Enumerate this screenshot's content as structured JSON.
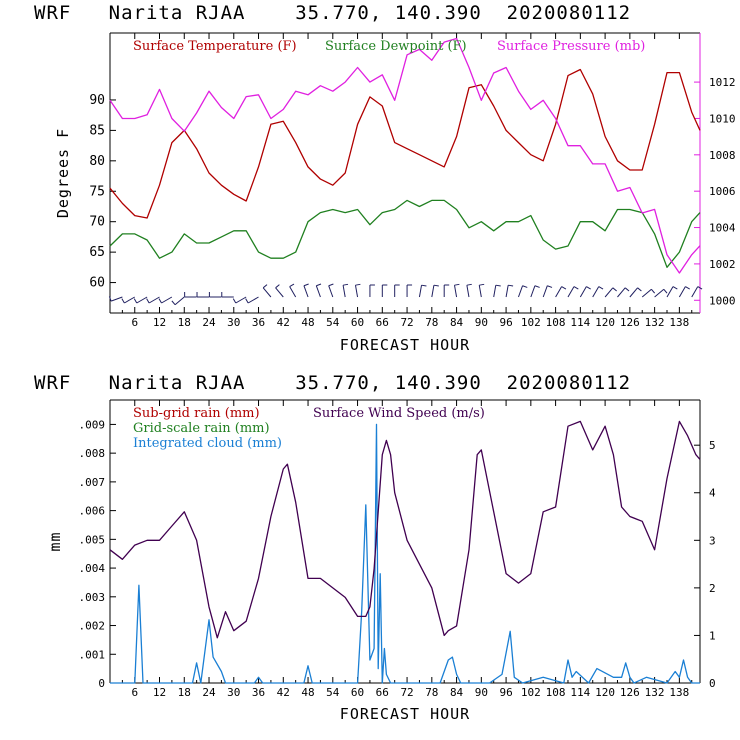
{
  "titles": {
    "top": "WRF   Narita RJAA    35.770, 140.390  2020080112",
    "bottom": "WRF   Narita RJAA    35.770, 140.390  2020080112"
  },
  "chart_data": [
    {
      "type": "line",
      "title": "WRF   Narita RJAA    35.770, 140.390  2020080112",
      "xlabel": "FORECAST HOUR",
      "ylabel": "Degrees F",
      "y2label": "",
      "xlim": [
        0,
        143
      ],
      "xticks": [
        6,
        12,
        18,
        24,
        30,
        36,
        42,
        48,
        54,
        60,
        66,
        72,
        78,
        84,
        90,
        96,
        102,
        108,
        114,
        120,
        126,
        132,
        138
      ],
      "ylim": [
        55,
        101
      ],
      "yticks": [
        60,
        65,
        70,
        75,
        80,
        85,
        90
      ],
      "y2lim": [
        999.3,
        1014.7
      ],
      "y2ticks": [
        1000,
        1002,
        1004,
        1006,
        1008,
        1010,
        1012
      ],
      "series": [
        {
          "name": "Surface Temperature (F)",
          "color": "#b00000",
          "axis": "left",
          "x": [
            0,
            3,
            6,
            9,
            12,
            15,
            18,
            21,
            24,
            27,
            30,
            33,
            36,
            39,
            42,
            45,
            48,
            51,
            54,
            57,
            60,
            63,
            66,
            69,
            72,
            75,
            78,
            81,
            84,
            87,
            90,
            93,
            96,
            99,
            102,
            105,
            108,
            111,
            114,
            117,
            120,
            123,
            126,
            129,
            132,
            135,
            138,
            141,
            143
          ],
          "values": [
            75.5,
            73,
            71,
            70.6,
            76,
            83,
            85,
            82,
            78,
            76,
            74.5,
            73.4,
            79,
            86,
            86.5,
            83,
            79,
            77,
            76,
            78,
            86,
            90.5,
            89,
            83,
            82,
            81,
            80,
            79,
            84,
            92,
            92.5,
            89,
            85,
            83,
            81,
            80,
            86,
            94,
            95,
            91,
            84,
            80,
            78.5,
            78.5,
            86,
            94.5,
            94.5,
            88,
            85
          ]
        },
        {
          "name": "Surface Dewpoint (F)",
          "color": "#208020",
          "axis": "left",
          "x": [
            0,
            3,
            6,
            9,
            12,
            15,
            18,
            21,
            24,
            27,
            30,
            33,
            36,
            39,
            42,
            45,
            48,
            51,
            54,
            57,
            60,
            63,
            66,
            69,
            72,
            75,
            78,
            81,
            84,
            87,
            90,
            93,
            96,
            99,
            102,
            105,
            108,
            111,
            114,
            117,
            120,
            123,
            126,
            129,
            132,
            135,
            138,
            141,
            143
          ],
          "values": [
            66,
            68,
            68,
            67,
            64,
            65,
            68,
            66.5,
            66.5,
            67.5,
            68.5,
            68.5,
            65,
            64,
            64,
            65,
            70,
            71.5,
            72,
            71.5,
            72,
            69.5,
            71.5,
            72,
            73.5,
            72.5,
            73.5,
            73.5,
            72,
            69,
            70,
            68.5,
            70,
            70,
            71,
            67,
            65.5,
            66,
            70,
            70,
            68.5,
            72,
            72,
            71.5,
            68,
            62.5,
            65,
            70,
            71.5
          ]
        },
        {
          "name": "Surface Pressure (mb)",
          "color": "#e020e0",
          "axis": "right",
          "x": [
            0,
            3,
            6,
            9,
            12,
            15,
            18,
            21,
            24,
            27,
            30,
            33,
            36,
            39,
            42,
            45,
            48,
            51,
            54,
            57,
            60,
            63,
            66,
            69,
            72,
            75,
            78,
            81,
            84,
            87,
            90,
            93,
            96,
            99,
            102,
            105,
            108,
            111,
            114,
            117,
            120,
            123,
            126,
            129,
            132,
            135,
            138,
            141,
            143
          ],
          "values": [
            1011,
            1010,
            1010,
            1010.2,
            1011.6,
            1010,
            1009.3,
            1010.3,
            1011.5,
            1010.6,
            1010,
            1011.2,
            1011.3,
            1010,
            1010.5,
            1011.5,
            1011.3,
            1011.8,
            1011.5,
            1012,
            1012.8,
            1012,
            1012.4,
            1011,
            1013.5,
            1013.8,
            1013.2,
            1014.2,
            1014.4,
            1012.8,
            1011,
            1012.5,
            1012.8,
            1011.5,
            1010.5,
            1011,
            1010,
            1008.5,
            1008.5,
            1007.5,
            1007.5,
            1006,
            1006.2,
            1004.8,
            1005,
            1002.5,
            1001.5,
            1002.5,
            1003
          ]
        }
      ],
      "wind_barbs": {
        "color": "#202060",
        "x": [
          3,
          6,
          9,
          12,
          15,
          18,
          21,
          24,
          27,
          30,
          33,
          36,
          39,
          42,
          45,
          48,
          51,
          54,
          57,
          60,
          63,
          66,
          69,
          72,
          75,
          78,
          81,
          84,
          87,
          90,
          93,
          96,
          99,
          102,
          105,
          108,
          111,
          114,
          117,
          120,
          123,
          126,
          129,
          132,
          135,
          138,
          141
        ],
        "direction_deg": [
          250,
          240,
          240,
          240,
          240,
          230,
          270,
          270,
          270,
          270,
          240,
          240,
          320,
          320,
          330,
          340,
          340,
          340,
          350,
          350,
          0,
          0,
          0,
          0,
          10,
          10,
          0,
          350,
          350,
          350,
          10,
          10,
          20,
          20,
          20,
          30,
          30,
          30,
          30,
          40,
          40,
          40,
          50,
          50,
          30,
          30,
          30
        ]
      }
    },
    {
      "type": "line",
      "title": "WRF   Narita RJAA    35.770, 140.390  2020080112",
      "xlabel": "FORECAST HOUR",
      "ylabel": "mm",
      "xlim": [
        0,
        143
      ],
      "xticks": [
        6,
        12,
        18,
        24,
        30,
        36,
        42,
        48,
        54,
        60,
        66,
        72,
        78,
        84,
        90,
        96,
        102,
        108,
        114,
        120,
        126,
        132,
        138
      ],
      "ylim": [
        0,
        0.00985
      ],
      "yticks": [
        0,
        0.001,
        0.002,
        0.003,
        0.004,
        0.005,
        0.006,
        0.007,
        0.008,
        0.009
      ],
      "yticklabels": [
        "0",
        ".001",
        ".002",
        ".003",
        ".004",
        ".005",
        ".006",
        ".007",
        ".008",
        ".009"
      ],
      "y2lim": [
        0,
        5.95
      ],
      "y2ticks": [
        0,
        1,
        2,
        3,
        4,
        5
      ],
      "series": [
        {
          "name": "Sub-grid rain (mm)",
          "color": "#b00000",
          "axis": "left",
          "x": [],
          "values": []
        },
        {
          "name": "Grid-scale rain (mm)",
          "color": "#208020",
          "axis": "left",
          "x": [],
          "values": []
        },
        {
          "name": "Integrated cloud (mm)",
          "color": "#1a7fd4",
          "axis": "left",
          "x": [
            0,
            6,
            7,
            8,
            9,
            20,
            21,
            22,
            24,
            25,
            27,
            28,
            30,
            35,
            36,
            37,
            47,
            48,
            49,
            60,
            61,
            62,
            63,
            64,
            64.6,
            65,
            65.5,
            66,
            66.5,
            67,
            68,
            70,
            80,
            82,
            83,
            84,
            85,
            92,
            95,
            97,
            98,
            100,
            105,
            110,
            111,
            112,
            113,
            116,
            118,
            122,
            124,
            125,
            126,
            127,
            130,
            135,
            137,
            138,
            139,
            140,
            141,
            143
          ],
          "values": [
            0,
            0,
            0.0034,
            0,
            0,
            0,
            0.0007,
            0,
            0.0022,
            0.0009,
            0.0004,
            0,
            0,
            0,
            0.0002,
            0,
            0,
            0.0006,
            0,
            0,
            0.0025,
            0.0062,
            0.0008,
            0.0012,
            0.009,
            0.0005,
            0.0038,
            0,
            0.0012,
            0.0003,
            0,
            0,
            0,
            0.0008,
            0.0009,
            0.0003,
            0,
            0,
            0.0003,
            0.0018,
            0.0002,
            0,
            0.0002,
            0,
            0.0008,
            0.0002,
            0.0004,
            0,
            0.0005,
            0.0002,
            0.0002,
            0.0007,
            0.0002,
            0,
            0.0002,
            0,
            0.0004,
            0.0002,
            0.0008,
            0.0002,
            0,
            0
          ]
        },
        {
          "name": "Surface Wind Speed (m/s)",
          "color": "#400050",
          "axis": "right",
          "x": [
            0,
            3,
            6,
            9,
            12,
            15,
            18,
            21,
            24,
            26,
            28,
            30,
            33,
            36,
            39,
            42,
            43,
            45,
            48,
            51,
            54,
            57,
            60,
            62,
            63,
            64,
            66,
            67,
            68,
            69,
            72,
            75,
            78,
            81,
            82,
            84,
            87,
            89,
            90,
            93,
            96,
            99,
            102,
            105,
            108,
            111,
            114,
            117,
            120,
            122,
            124,
            126,
            129,
            132,
            135,
            138,
            140,
            142,
            143
          ],
          "values": [
            2.8,
            2.6,
            2.9,
            3.0,
            3.0,
            3.3,
            3.6,
            3.0,
            1.6,
            0.95,
            1.5,
            1.1,
            1.3,
            2.2,
            3.5,
            4.5,
            4.6,
            3.8,
            2.2,
            2.2,
            2.0,
            1.8,
            1.4,
            1.4,
            1.6,
            2.4,
            4.8,
            5.1,
            4.8,
            4.0,
            3.0,
            2.5,
            2.0,
            1.0,
            1.1,
            1.2,
            2.8,
            4.8,
            4.9,
            3.6,
            2.3,
            2.1,
            2.3,
            3.6,
            3.7,
            5.4,
            5.5,
            4.9,
            5.4,
            4.8,
            3.7,
            3.5,
            3.4,
            2.8,
            4.3,
            5.5,
            5.2,
            4.8,
            4.7
          ]
        }
      ]
    }
  ]
}
